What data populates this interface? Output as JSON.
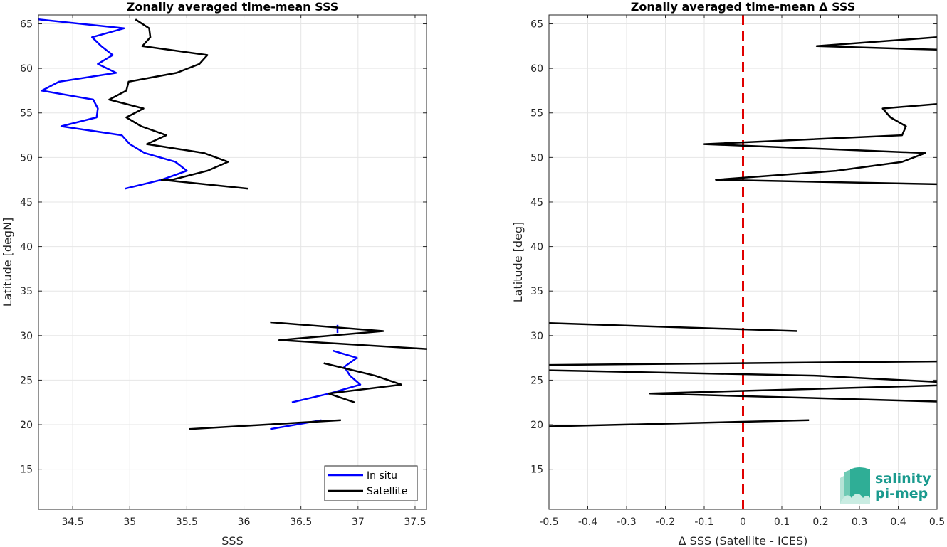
{
  "chart_data": [
    {
      "type": "line",
      "title": "Zonally averaged time-mean SSS",
      "xlabel": "SSS",
      "ylabel": "Latitude [degN]",
      "xlim": [
        34.2,
        37.6
      ],
      "ylim": [
        10.5,
        66
      ],
      "xticks": [
        34.5,
        35,
        35.5,
        36,
        36.5,
        37,
        37.5
      ],
      "yticks": [
        15,
        20,
        25,
        30,
        35,
        40,
        45,
        50,
        55,
        60,
        65
      ],
      "grid": true,
      "legend": "bottom-right",
      "series": [
        {
          "name": "In situ",
          "color": "#0000ff",
          "segments": [
            [
              [
                34.2,
                65.5
              ],
              [
                34.95,
                64.5
              ],
              [
                34.67,
                63.5
              ],
              [
                34.75,
                62.5
              ],
              [
                34.85,
                61.5
              ],
              [
                34.72,
                60.5
              ],
              [
                34.88,
                59.5
              ],
              [
                34.38,
                58.5
              ],
              [
                34.23,
                57.5
              ],
              [
                34.68,
                56.5
              ],
              [
                34.72,
                55.5
              ],
              [
                34.71,
                54.5
              ],
              [
                34.4,
                53.5
              ],
              [
                34.93,
                52.5
              ],
              [
                35.0,
                51.5
              ],
              [
                35.13,
                50.5
              ],
              [
                35.4,
                49.5
              ],
              [
                35.5,
                48.5
              ],
              [
                35.28,
                47.5
              ],
              [
                34.96,
                46.5
              ]
            ],
            [
              [
                36.82,
                31.2
              ],
              [
                36.82,
                30.3
              ]
            ],
            [
              [
                36.78,
                28.3
              ],
              [
                36.99,
                27.5
              ],
              [
                36.88,
                26.5
              ],
              [
                36.93,
                25.5
              ],
              [
                37.02,
                24.5
              ],
              [
                36.75,
                23.5
              ],
              [
                36.42,
                22.5
              ]
            ],
            [
              [
                36.68,
                20.5
              ],
              [
                36.23,
                19.5
              ]
            ]
          ]
        },
        {
          "name": "Satellite",
          "color": "#000000",
          "segments": [
            [
              [
                35.05,
                65.5
              ],
              [
                35.17,
                64.5
              ],
              [
                35.18,
                63.5
              ],
              [
                35.11,
                62.5
              ],
              [
                35.68,
                61.5
              ],
              [
                35.61,
                60.5
              ],
              [
                35.41,
                59.5
              ],
              [
                34.99,
                58.5
              ],
              [
                34.97,
                57.5
              ],
              [
                34.82,
                56.5
              ],
              [
                35.12,
                55.5
              ],
              [
                34.97,
                54.5
              ],
              [
                35.1,
                53.5
              ],
              [
                35.32,
                52.5
              ],
              [
                35.15,
                51.5
              ],
              [
                35.65,
                50.5
              ],
              [
                35.86,
                49.5
              ],
              [
                35.68,
                48.5
              ],
              [
                35.37,
                47.5
              ],
              [
                35.28,
                47.5
              ],
              [
                36.04,
                46.5
              ]
            ],
            [
              [
                36.23,
                31.5
              ],
              [
                37.22,
                30.5
              ],
              [
                36.31,
                29.5
              ],
              [
                37.6,
                28.5
              ]
            ],
            [
              [
                36.7,
                26.9
              ],
              [
                37.15,
                25.5
              ],
              [
                37.38,
                24.5
              ],
              [
                36.74,
                23.5
              ],
              [
                36.97,
                22.5
              ]
            ],
            [
              [
                36.85,
                20.5
              ],
              [
                35.52,
                19.5
              ]
            ]
          ]
        }
      ]
    },
    {
      "type": "line",
      "title": "Zonally averaged time-mean Δ SSS",
      "xlabel": "Δ SSS (Satellite - ICES)",
      "ylabel": "Latitude [deg]",
      "xlim": [
        -0.5,
        0.5
      ],
      "ylim": [
        10.5,
        66
      ],
      "xticks": [
        -0.5,
        -0.4,
        -0.3,
        -0.2,
        -0.1,
        0,
        0.1,
        0.2,
        0.3,
        0.4,
        0.5
      ],
      "yticks": [
        15,
        20,
        25,
        30,
        35,
        40,
        45,
        50,
        55,
        60,
        65
      ],
      "grid": true,
      "reference_line": {
        "x": 0,
        "color": "#e00000",
        "style": "dashed"
      },
      "series": [
        {
          "color": "#000000",
          "segments": [
            [
              [
                0.5,
                63.5
              ],
              [
                0.19,
                62.5
              ],
              [
                0.5,
                62.1
              ]
            ],
            [
              [
                0.5,
                56.0
              ],
              [
                0.36,
                55.5
              ],
              [
                0.38,
                54.5
              ],
              [
                0.42,
                53.5
              ],
              [
                0.41,
                52.5
              ],
              [
                -0.1,
                51.5
              ],
              [
                0.47,
                50.5
              ],
              [
                0.41,
                49.5
              ],
              [
                0.24,
                48.5
              ],
              [
                -0.07,
                47.5
              ],
              [
                0.5,
                47.0
              ]
            ],
            [
              [
                -0.5,
                31.4
              ],
              [
                0.14,
                30.5
              ]
            ],
            [
              [
                -0.5,
                26.7
              ],
              [
                0.5,
                27.1
              ]
            ],
            [
              [
                -0.5,
                26.1
              ],
              [
                0.19,
                25.5
              ],
              [
                0.5,
                24.8
              ]
            ],
            [
              [
                0.5,
                24.4
              ],
              [
                -0.24,
                23.5
              ],
              [
                0.5,
                22.6
              ]
            ],
            [
              [
                -0.5,
                19.8
              ],
              [
                0.17,
                20.5
              ]
            ]
          ]
        }
      ]
    }
  ],
  "logo": {
    "line1": "salinity",
    "line2": "pi-mep"
  }
}
